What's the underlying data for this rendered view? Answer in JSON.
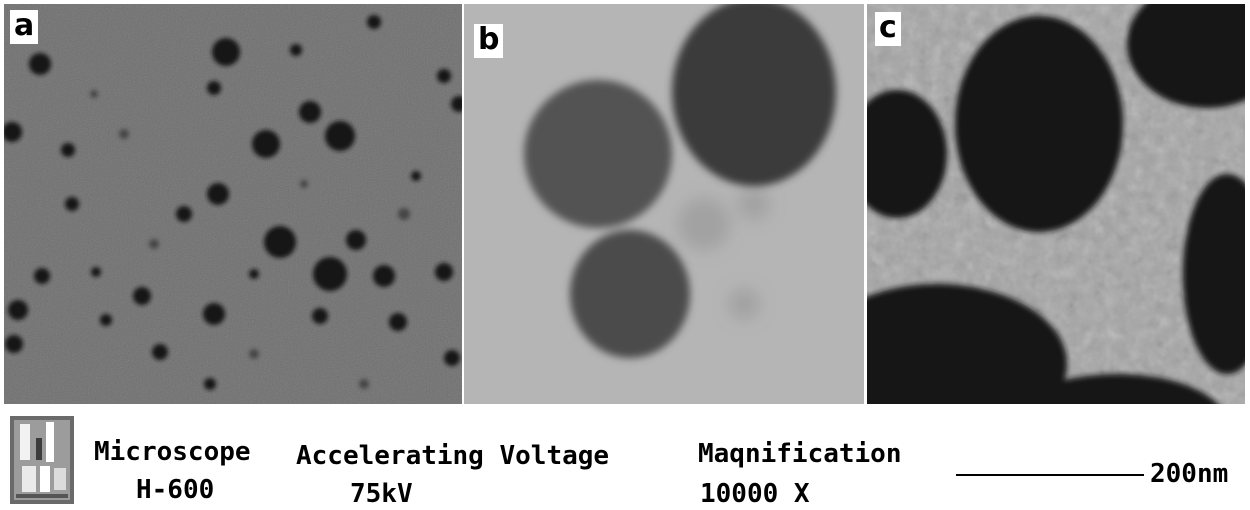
{
  "panels": [
    {
      "label": "a"
    },
    {
      "label": "b"
    },
    {
      "label": "c"
    }
  ],
  "info": {
    "microscope_label": "Microscope",
    "microscope_value": "H-600",
    "voltage_label": "Accelerating Voltage",
    "voltage_value": "75kV",
    "magnification_label": "Maqnification",
    "magnification_value": "10000 X",
    "scale_label": "200nm"
  },
  "colors": {
    "panel_a_background": "#6e6e6e",
    "panel_b_background": "#b5b5b5",
    "panel_c_background": "#9a9a9a",
    "particle_dark": "#111111"
  }
}
